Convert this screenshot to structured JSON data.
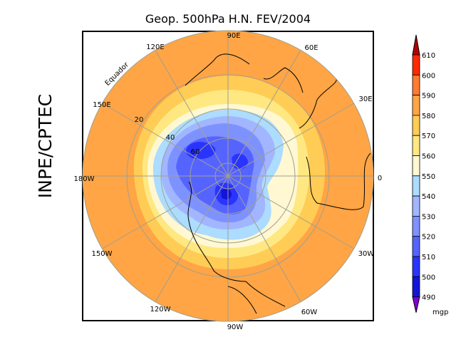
{
  "title": "Geop. 500hPa H.N. FEV/2004",
  "side_label": "INPE/CPTEC",
  "map": {
    "projection": "north-polar-stereographic",
    "meridian_labels": [
      "90E",
      "60E",
      "30E",
      "0",
      "30W",
      "60W",
      "90W",
      "120W",
      "150W",
      "180W",
      "150E",
      "120E"
    ],
    "latitude_labels": [
      "20",
      "40",
      "60"
    ],
    "equator_label": "Equador"
  },
  "colorbar": {
    "unit": "mgp",
    "levels": [
      "610",
      "600",
      "590",
      "580",
      "570",
      "560",
      "550",
      "540",
      "530",
      "520",
      "510",
      "500",
      "490"
    ],
    "colors": {
      "above": "#b40000",
      "600-610": "#ff2a00",
      "590-600": "#ff7b30",
      "580-590": "#ffa545",
      "570-580": "#ffcc55",
      "560-570": "#ffe882",
      "550-560": "#fff8d2",
      "540-550": "#acdcff",
      "530-540": "#a2b6ff",
      "520-530": "#7e92ff",
      "510-520": "#5664ff",
      "500-510": "#2a34ff",
      "490-500": "#1414d8",
      "below": "#8000d8"
    }
  }
}
